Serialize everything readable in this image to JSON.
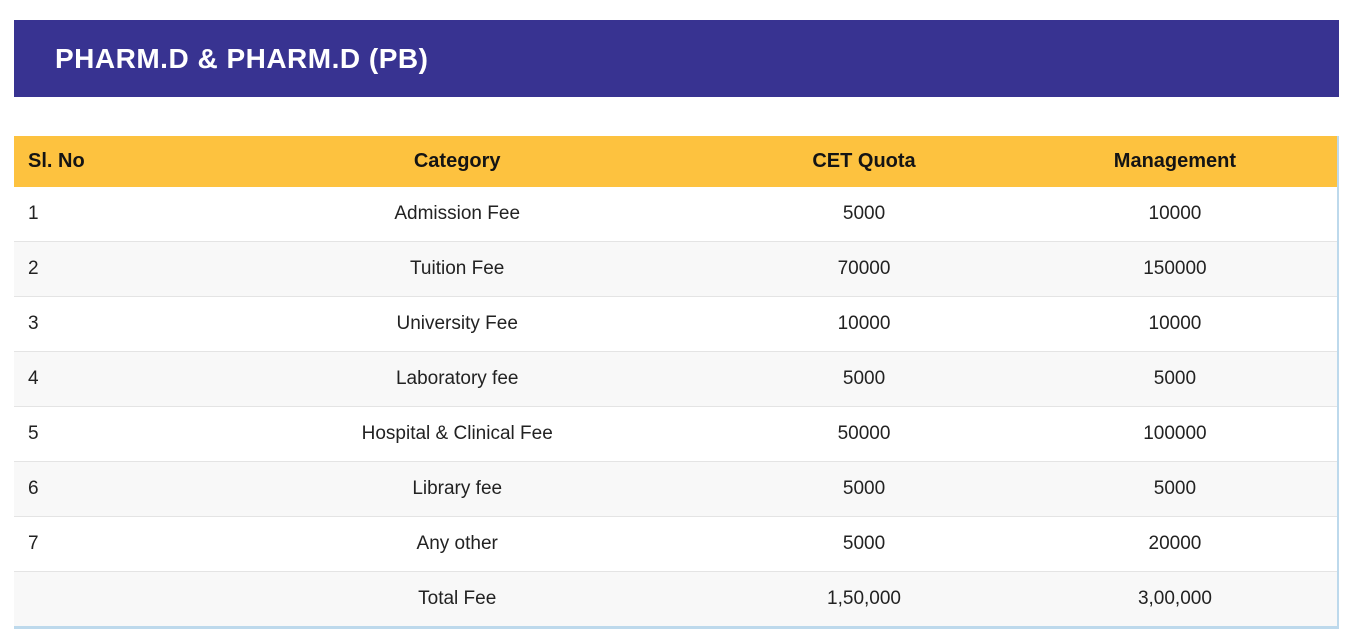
{
  "banner": {
    "title": "PHARM.D & PHARM.D (PB)"
  },
  "table": {
    "columns": [
      "Sl. No",
      "Category",
      "CET Quota",
      "Management"
    ],
    "rows": [
      {
        "sl_no": "1",
        "category": "Admission Fee",
        "cet_quota": "5000",
        "management": "10000"
      },
      {
        "sl_no": "2",
        "category": "Tuition Fee",
        "cet_quota": "70000",
        "management": "150000"
      },
      {
        "sl_no": "3",
        "category": "University Fee",
        "cet_quota": "10000",
        "management": "10000"
      },
      {
        "sl_no": "4",
        "category": "Laboratory fee",
        "cet_quota": "5000",
        "management": "5000"
      },
      {
        "sl_no": "5",
        "category": "Hospital & Clinical Fee",
        "cet_quota": "50000",
        "management": "100000"
      },
      {
        "sl_no": "6",
        "category": "Library fee",
        "cet_quota": "5000",
        "management": "5000"
      },
      {
        "sl_no": "7",
        "category": "Any other",
        "cet_quota": "5000",
        "management": "20000"
      },
      {
        "sl_no": "",
        "category": "Total Fee",
        "cet_quota": "1,50,000",
        "management": "3,00,000"
      }
    ]
  },
  "colors": {
    "banner_bg": "#383391",
    "banner_text": "#ffffff",
    "header_bg": "#fdc23f",
    "header_text": "#141414",
    "body_text": "#222222",
    "stripe_bg": "#f8f8f8",
    "row_border": "#e4e4e4",
    "table_border": "#bdd9ec",
    "page_bg": "#ffffff"
  }
}
